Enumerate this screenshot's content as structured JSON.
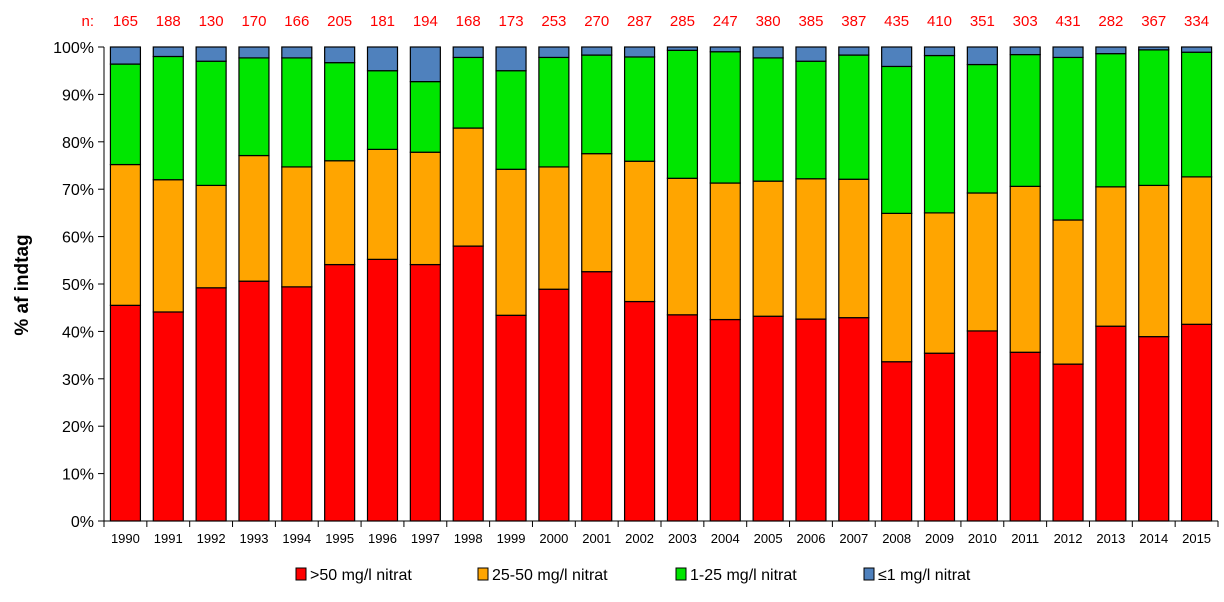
{
  "chart_data": {
    "type": "bar",
    "stacked": true,
    "ylabel": "% af indtag",
    "xlabel": "",
    "ylim": [
      0,
      100
    ],
    "y_ticks": [
      "0%",
      "10%",
      "20%",
      "30%",
      "40%",
      "50%",
      "60%",
      "70%",
      "80%",
      "90%",
      "100%"
    ],
    "grid": false,
    "legend_position": "bottom",
    "n_prefix": "n:",
    "categories": [
      "1990",
      "1991",
      "1992",
      "1993",
      "1994",
      "1995",
      "1996",
      "1997",
      "1998",
      "1999",
      "2000",
      "2001",
      "2002",
      "2003",
      "2004",
      "2005",
      "2006",
      "2007",
      "2008",
      "2009",
      "2010",
      "2011",
      "2012",
      "2013",
      "2014",
      "2015"
    ],
    "n_values": [
      "165",
      "188",
      "130",
      "170",
      "166",
      "205",
      "181",
      "194",
      "168",
      "173",
      "253",
      "270",
      "287",
      "285",
      "247",
      "380",
      "385",
      "387",
      "435",
      "410",
      "351",
      "303",
      "431",
      "282",
      "367",
      "334"
    ],
    "series": [
      {
        "name": ">50 mg/l nitrat",
        "color": "#ff0000",
        "values": [
          45.5,
          44.1,
          49.2,
          50.6,
          49.4,
          54.1,
          55.2,
          54.1,
          58.0,
          43.4,
          48.9,
          52.6,
          46.3,
          43.5,
          42.5,
          43.2,
          42.6,
          42.9,
          33.6,
          35.4,
          40.1,
          35.6,
          33.1,
          41.1,
          38.9,
          41.5
        ]
      },
      {
        "name": "25-50 mg/l nitrat",
        "color": "#ffa500",
        "values": [
          29.7,
          27.9,
          21.6,
          26.5,
          25.3,
          21.9,
          23.2,
          23.7,
          24.9,
          30.8,
          25.8,
          24.9,
          29.6,
          28.8,
          28.8,
          28.5,
          29.6,
          29.2,
          31.3,
          29.6,
          29.1,
          35.0,
          30.4,
          29.4,
          31.9,
          31.1
        ]
      },
      {
        "name": "1-25 mg/l nitrat",
        "color": "#00e600",
        "values": [
          21.2,
          26.0,
          26.2,
          20.6,
          23.0,
          20.7,
          16.6,
          14.9,
          14.9,
          20.8,
          23.1,
          20.8,
          22.0,
          27.0,
          27.7,
          26.0,
          24.8,
          26.2,
          31.0,
          33.2,
          27.1,
          27.8,
          34.3,
          28.1,
          28.6,
          26.3
        ]
      },
      {
        "name": "≤1 mg/l nitrat",
        "color": "#4f81bd",
        "values": [
          3.6,
          2.0,
          3.0,
          2.3,
          2.3,
          3.3,
          5.0,
          7.3,
          2.2,
          5.0,
          2.2,
          1.7,
          2.1,
          0.7,
          1.0,
          2.3,
          3.0,
          1.7,
          4.1,
          1.8,
          3.7,
          1.6,
          2.2,
          1.4,
          0.6,
          1.1
        ]
      }
    ]
  }
}
